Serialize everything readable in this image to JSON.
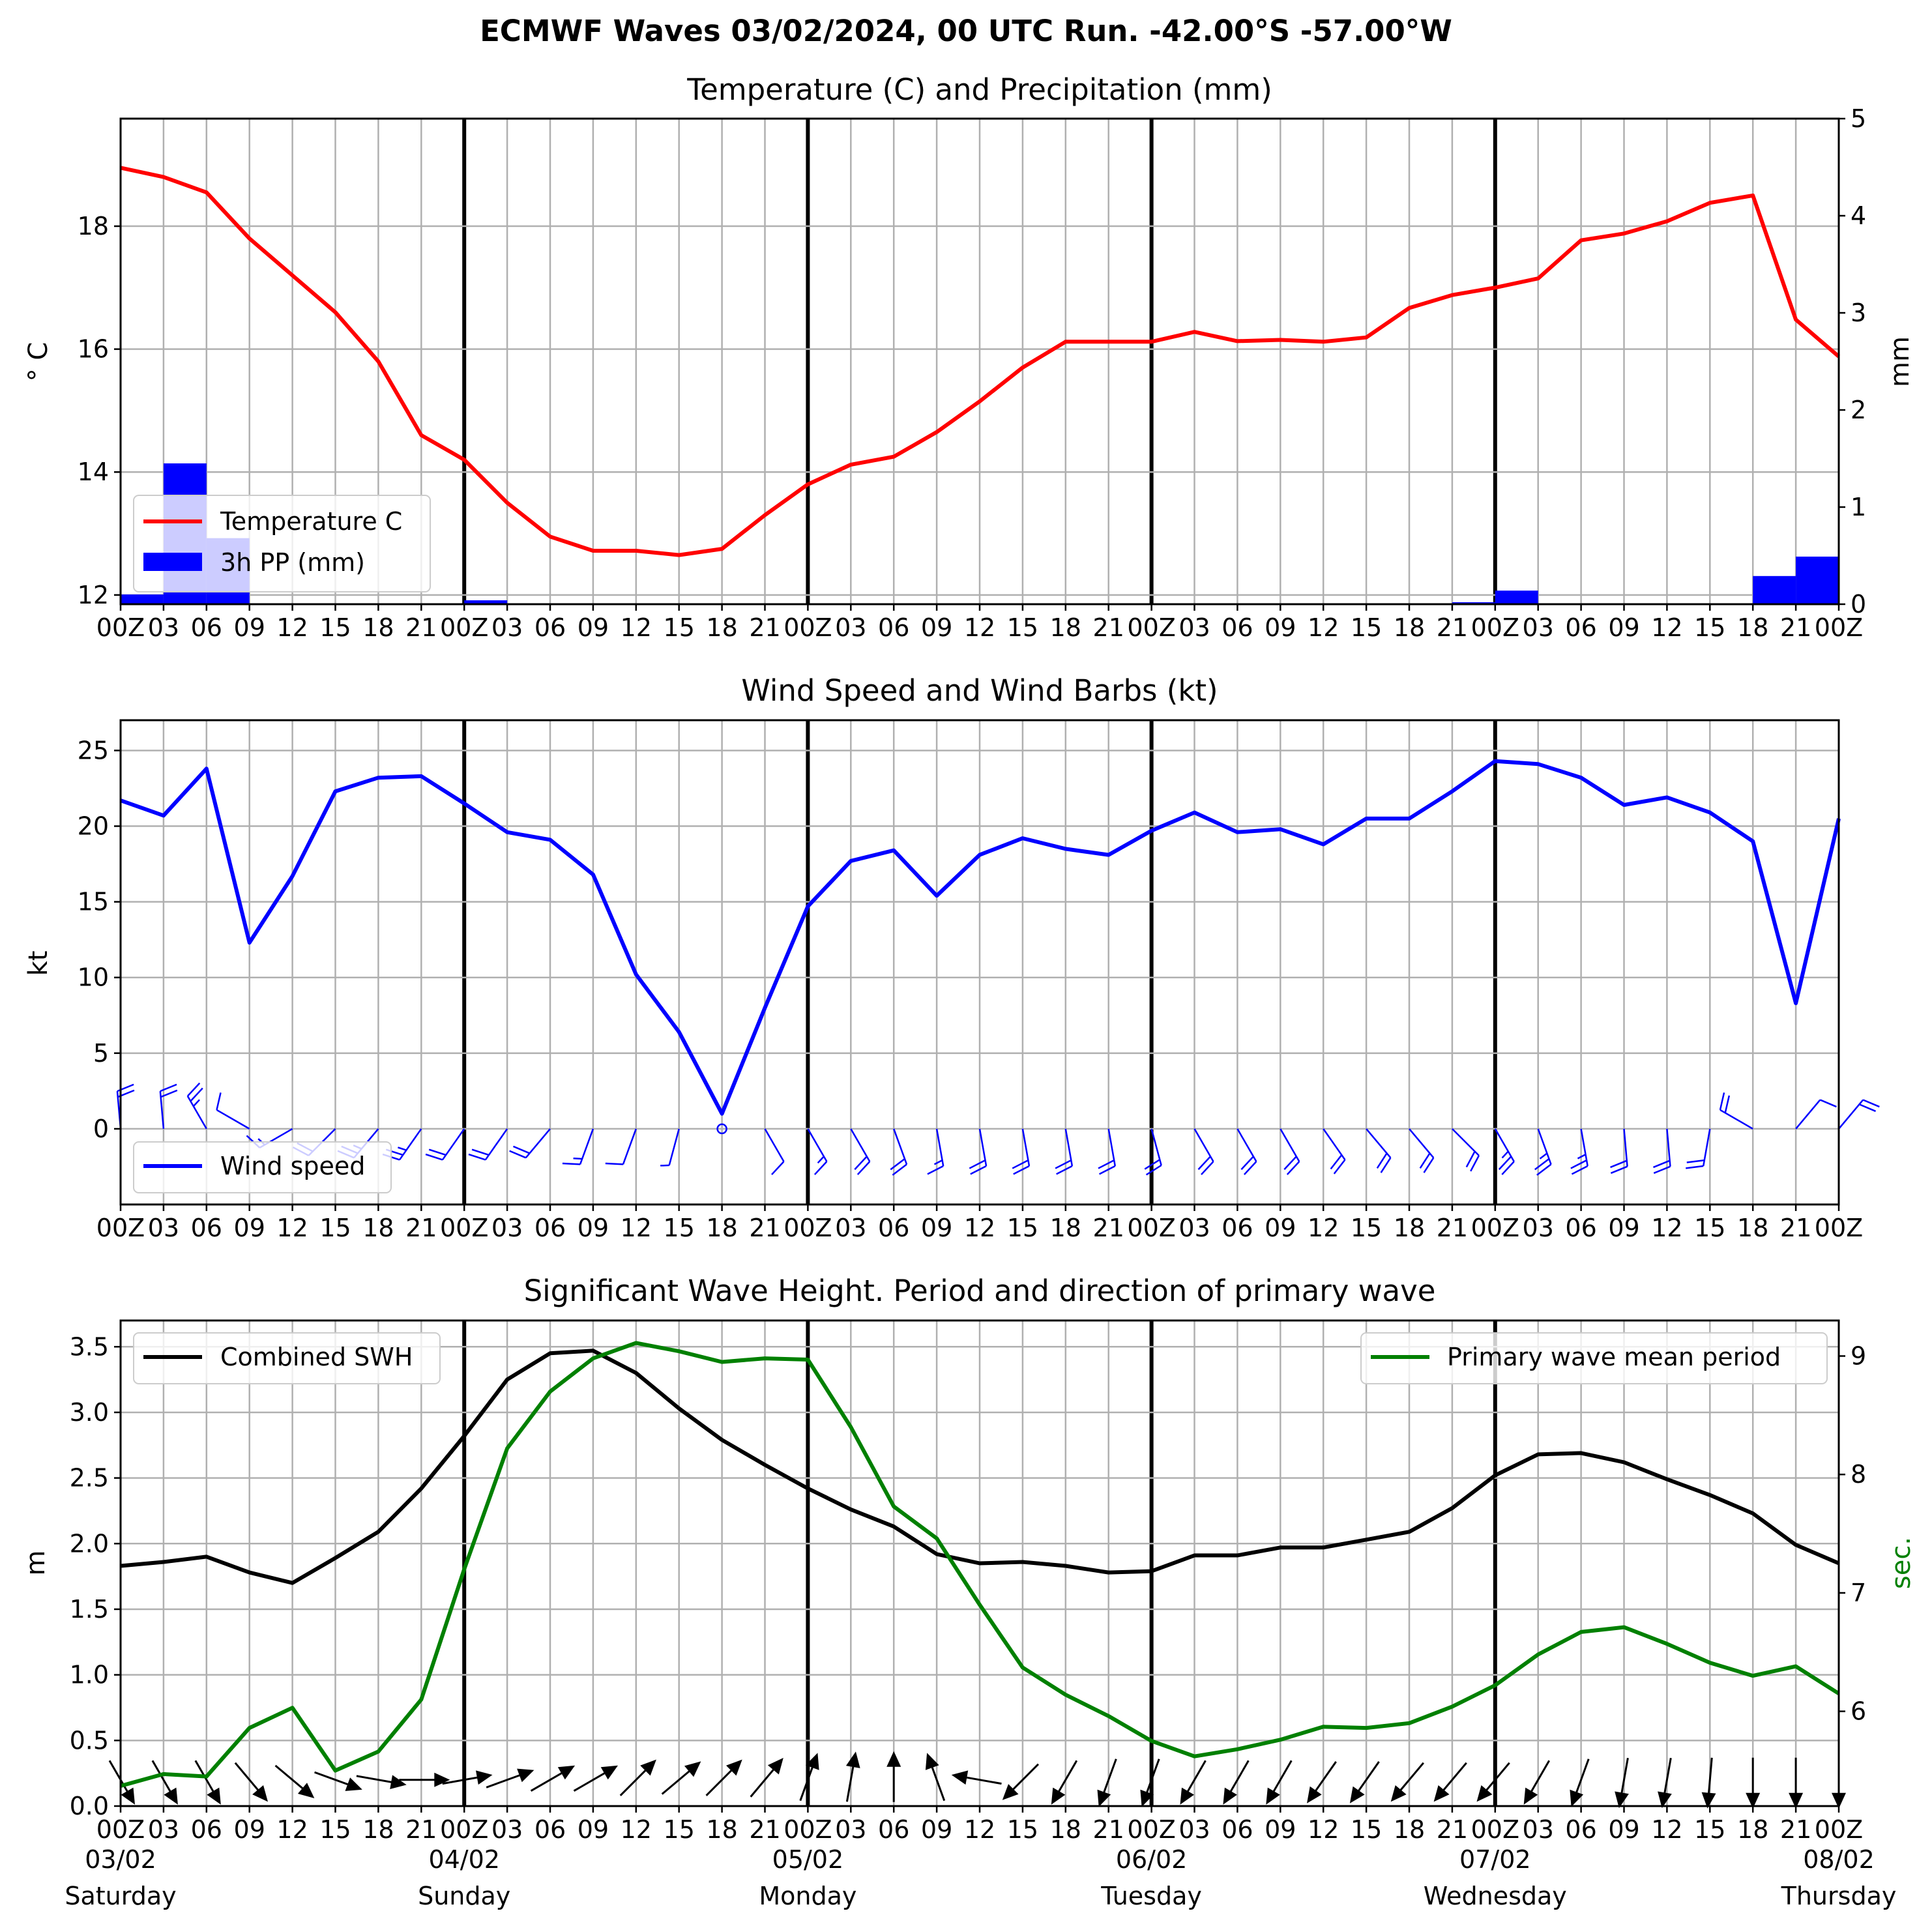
{
  "figure": {
    "suptitle": "ECMWF Waves 03/02/2024, 00 UTC Run. -42.00°S -57.00°W",
    "hour_labels": [
      "00Z",
      "03",
      "06",
      "09",
      "12",
      "15",
      "18",
      "21",
      "00Z",
      "03",
      "06",
      "09",
      "12",
      "15",
      "18",
      "21",
      "00Z",
      "03",
      "06",
      "09",
      "12",
      "15",
      "18",
      "21",
      "00Z",
      "03",
      "06",
      "09",
      "12",
      "15",
      "18",
      "21",
      "00Z",
      "03",
      "06",
      "09",
      "12",
      "15",
      "18",
      "21",
      "00Z"
    ],
    "date_labels": [
      {
        "date": "03/02",
        "day": "Saturday"
      },
      {
        "date": "04/02",
        "day": "Sunday"
      },
      {
        "date": "05/02",
        "day": "Monday"
      },
      {
        "date": "06/02",
        "day": "Tuesday"
      },
      {
        "date": "07/02",
        "day": "Wednesday"
      },
      {
        "date": "08/02",
        "day": "Thursday"
      }
    ]
  },
  "chart_data": [
    {
      "type": "line",
      "title": "Temperature (C) and Precipitation (mm)",
      "ylabel": "$^\\circ$C",
      "ylabel_display": "° C",
      "ylim": [
        11.85,
        19.75
      ],
      "yticks": [
        12,
        14,
        16,
        18
      ],
      "y2label": "mm",
      "y2lim": [
        0,
        5
      ],
      "y2ticks": [
        0,
        1,
        2,
        3,
        4,
        5
      ],
      "x_hours": [
        0,
        3,
        6,
        9,
        12,
        15,
        18,
        21,
        24,
        27,
        30,
        33,
        36,
        39,
        42,
        45,
        48,
        51,
        54,
        57,
        60,
        63,
        66,
        69,
        72,
        75,
        78,
        81,
        84,
        87,
        90,
        93,
        96,
        99,
        102,
        105,
        108,
        111,
        114,
        117,
        120
      ],
      "series": [
        {
          "name": "Temperature C",
          "color": "#ff0000",
          "axis": "left",
          "values": [
            18.95,
            18.8,
            18.55,
            17.8,
            17.2,
            16.6,
            15.8,
            14.6,
            14.2,
            13.5,
            12.95,
            12.72,
            12.72,
            12.65,
            12.75,
            13.3,
            13.8,
            14.12,
            14.25,
            14.65,
            15.15,
            15.7,
            16.12,
            16.12,
            16.12,
            16.28,
            16.13,
            16.15,
            16.12,
            16.19,
            16.67,
            16.88,
            17.0,
            17.15,
            17.77,
            17.88,
            18.08,
            18.38,
            18.5,
            16.48,
            15.88
          ]
        },
        {
          "name": "3h PP (mm)",
          "type": "bar",
          "color": "#0000ff",
          "axis": "right",
          "x_start": [
            0,
            3,
            6,
            9,
            12,
            15,
            18,
            21,
            24,
            27,
            30,
            33,
            36,
            39,
            42,
            45,
            48,
            51,
            54,
            57,
            60,
            63,
            66,
            69,
            72,
            75,
            78,
            81,
            84,
            87,
            90,
            93,
            96,
            99,
            102,
            105,
            108,
            111,
            114,
            117
          ],
          "values": [
            0.1,
            1.45,
            0.68,
            0,
            0,
            0,
            0,
            0,
            0.04,
            0,
            0,
            0,
            0,
            0,
            0,
            0,
            0,
            0,
            0,
            0,
            0,
            0,
            0,
            0,
            0,
            0,
            0,
            0,
            0,
            0,
            0,
            0.02,
            0.14,
            0,
            0,
            0,
            0,
            0,
            0.29,
            0.49
          ]
        }
      ],
      "legend": "lower-left",
      "grid": true
    },
    {
      "type": "line",
      "title": "Wind Speed and Wind Barbs (kt)",
      "ylabel": "kt",
      "ylim": [
        -5,
        27
      ],
      "yticks": [
        0,
        5,
        10,
        15,
        20,
        25
      ],
      "x_hours": [
        0,
        3,
        6,
        9,
        12,
        15,
        18,
        21,
        24,
        27,
        30,
        33,
        36,
        39,
        42,
        45,
        48,
        51,
        54,
        57,
        60,
        63,
        66,
        69,
        72,
        75,
        78,
        81,
        84,
        87,
        90,
        93,
        96,
        99,
        102,
        105,
        108,
        111,
        114,
        117,
        120
      ],
      "series": [
        {
          "name": "Wind speed",
          "color": "#0000ff",
          "values": [
            21.7,
            20.7,
            23.8,
            12.3,
            16.7,
            22.3,
            23.2,
            23.3,
            21.5,
            19.6,
            19.1,
            16.8,
            10.2,
            6.4,
            1.0,
            8.0,
            14.7,
            17.7,
            18.4,
            15.4,
            18.1,
            19.2,
            18.5,
            18.1,
            19.7,
            20.9,
            19.6,
            19.8,
            18.8,
            20.5,
            20.5,
            22.3,
            24.3,
            24.1,
            23.2,
            21.4,
            21.9,
            20.9,
            19.0,
            8.3,
            20.5
          ]
        }
      ],
      "wind_barbs": {
        "color": "#0000ff",
        "direction_deg": [
          355,
          355,
          330,
          300,
          240,
          225,
          220,
          215,
          215,
          215,
          220,
          200,
          200,
          195,
          null,
          150,
          150,
          150,
          160,
          170,
          170,
          170,
          170,
          170,
          165,
          150,
          150,
          150,
          145,
          140,
          140,
          135,
          150,
          160,
          170,
          175,
          175,
          190,
          300,
          40,
          40
        ]
      },
      "legend": "lower-left",
      "grid": true
    },
    {
      "type": "line",
      "title": "Significant Wave Height. Period and direction of primary wave",
      "ylabel": "m",
      "ylim": [
        0.0,
        3.7
      ],
      "yticks": [
        0.0,
        0.5,
        1.0,
        1.5,
        2.0,
        2.5,
        3.0,
        3.5
      ],
      "y2label": "sec.",
      "y2lim": [
        5.2,
        9.3
      ],
      "y2ticks": [
        6,
        7,
        8,
        9
      ],
      "x_hours": [
        0,
        3,
        6,
        9,
        12,
        15,
        18,
        21,
        24,
        27,
        30,
        33,
        36,
        39,
        42,
        45,
        48,
        51,
        54,
        57,
        60,
        63,
        66,
        69,
        72,
        75,
        78,
        81,
        84,
        87,
        90,
        93,
        96,
        99,
        102,
        105,
        108,
        111,
        114,
        117,
        120
      ],
      "series": [
        {
          "name": "Combined SWH",
          "color": "#000000",
          "axis": "left",
          "values": [
            1.83,
            1.86,
            1.9,
            1.78,
            1.7,
            1.89,
            2.09,
            2.42,
            2.82,
            3.25,
            3.45,
            3.47,
            3.3,
            3.03,
            2.79,
            2.6,
            2.42,
            2.26,
            2.13,
            1.92,
            1.85,
            1.86,
            1.83,
            1.78,
            1.79,
            1.91,
            1.91,
            1.97,
            1.97,
            2.03,
            2.09,
            2.27,
            2.52,
            2.68,
            2.69,
            2.62,
            2.49,
            2.37,
            2.23,
            1.99,
            1.85
          ]
        },
        {
          "name": "Primary wave mean period",
          "color": "#008000",
          "axis": "right",
          "values": [
            5.37,
            5.47,
            5.45,
            5.86,
            6.03,
            5.5,
            5.66,
            6.1,
            7.2,
            8.22,
            8.7,
            8.98,
            9.11,
            9.04,
            8.95,
            8.98,
            8.97,
            8.4,
            7.73,
            7.46,
            6.9,
            6.37,
            6.14,
            5.96,
            5.75,
            5.62,
            5.68,
            5.76,
            5.87,
            5.86,
            5.9,
            6.04,
            6.22,
            6.48,
            6.67,
            6.71,
            6.57,
            6.41,
            6.3,
            6.38,
            6.15
          ]
        }
      ],
      "wave_direction_deg": [
        150,
        150,
        150,
        140,
        130,
        110,
        100,
        90,
        80,
        70,
        60,
        60,
        45,
        50,
        45,
        40,
        20,
        10,
        0,
        340,
        280,
        225,
        210,
        200,
        200,
        210,
        210,
        210,
        215,
        215,
        220,
        220,
        220,
        210,
        200,
        190,
        190,
        185,
        180,
        180,
        180
      ],
      "legend": [
        "upper-left",
        "upper-right"
      ],
      "grid": true
    }
  ]
}
